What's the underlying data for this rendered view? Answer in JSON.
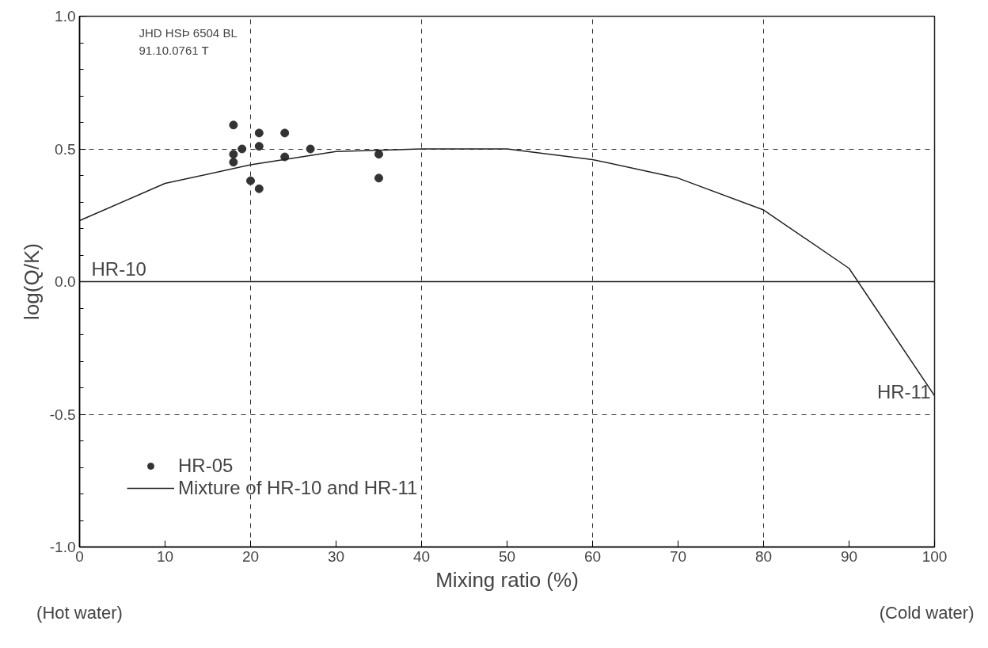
{
  "chart_data": {
    "type": "scatter",
    "xlabel": "Mixing ratio (%)",
    "ylabel": "log(Q/K)",
    "xlim": [
      0,
      100
    ],
    "ylim": [
      -1.0,
      1.0
    ],
    "xticks": [
      0,
      10,
      20,
      30,
      40,
      50,
      60,
      70,
      80,
      90,
      100
    ],
    "yticks": [
      {
        "value": -1.0,
        "label": "-1.0"
      },
      {
        "value": -0.5,
        "label": "-0.5"
      },
      {
        "value": 0,
        "label": "0.0"
      },
      {
        "value": 0.5,
        "label": "0.5"
      },
      {
        "value": 1.0,
        "label": "1.0"
      }
    ],
    "grid": true,
    "legend": "bottom left",
    "ref_lines": [
      {
        "axis": "y",
        "value": 0,
        "label": null,
        "color": "#222222",
        "line_style": "solid"
      }
    ],
    "series": [
      {
        "name": "HR-05",
        "marker": "circle",
        "color": "#333333",
        "x": [
          18,
          18,
          18,
          19,
          20,
          21,
          21,
          21,
          24,
          24,
          27,
          35,
          35
        ],
        "values": [
          0.59,
          0.48,
          0.45,
          0.5,
          0.38,
          0.56,
          0.51,
          0.35,
          0.56,
          0.47,
          0.5,
          0.48,
          0.39
        ]
      },
      {
        "name": "Mixture of HR-10 and HR-11",
        "type": "line",
        "color": "#222222",
        "marker": "none",
        "x": [
          0,
          10,
          20,
          30,
          40,
          50,
          60,
          70,
          80,
          90,
          100
        ],
        "values": [
          0.23,
          0.37,
          0.44,
          0.49,
          0.5,
          0.5,
          0.46,
          0.39,
          0.27,
          0.05,
          -0.43
        ]
      }
    ],
    "annotations": [
      {
        "text": "HR-10",
        "x": 0,
        "y": 0.23
      },
      {
        "text": "HR-11",
        "x": 100,
        "y": -0.43
      },
      "(Hot water)",
      "(Cold water)",
      "JHD HSÞ 6504 BL",
      "91.10.0761 T"
    ]
  }
}
